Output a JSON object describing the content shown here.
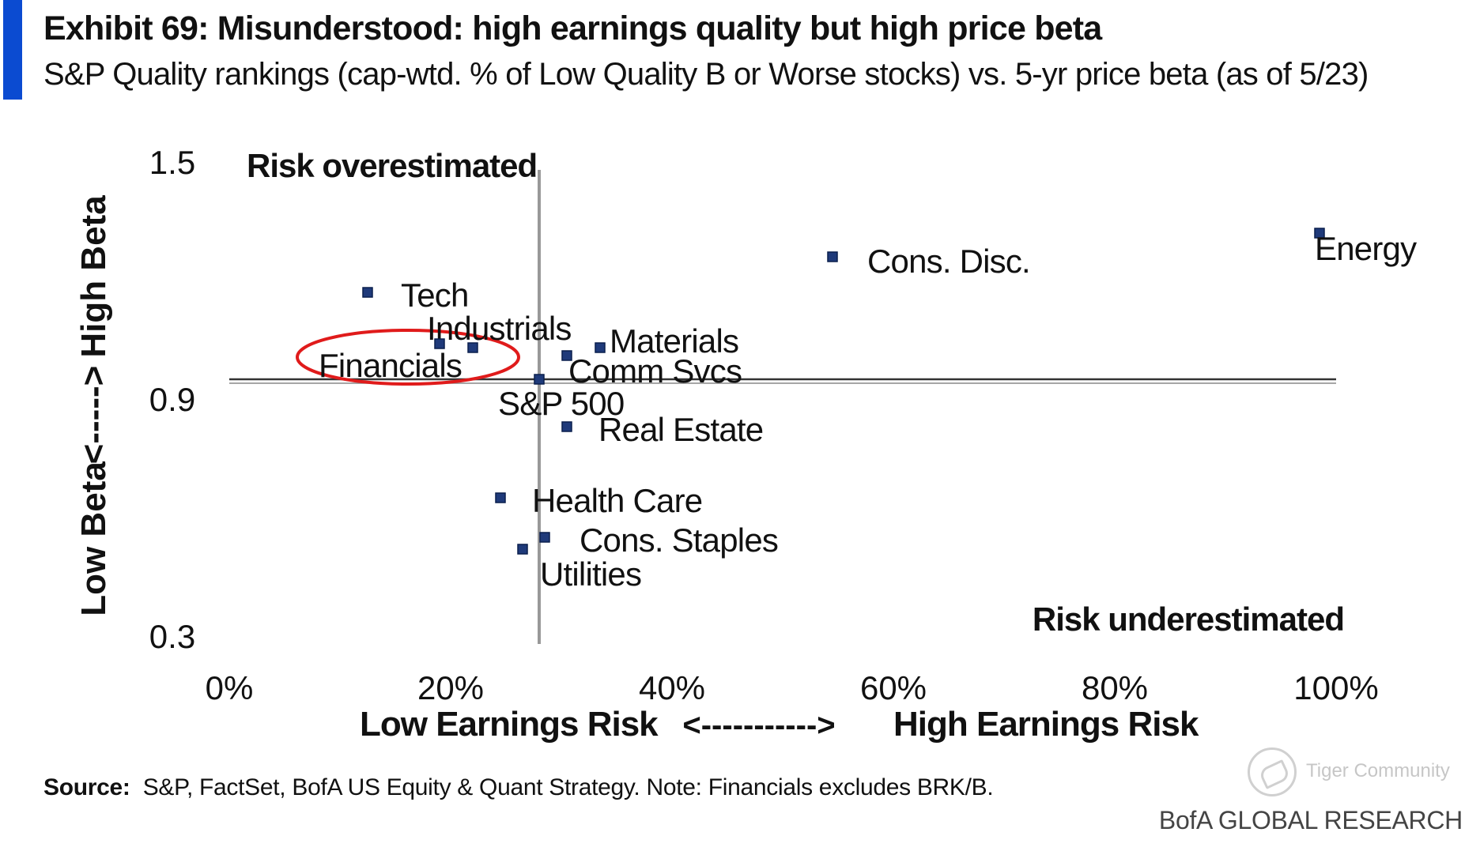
{
  "header": {
    "title": "Exhibit 69: Misunderstood: high earnings quality but high price beta",
    "subtitle": "S&P Quality rankings (cap-wtd. % of Low Quality B or Worse stocks) vs. 5-yr price beta (as of 5/23)",
    "accent_color": "#0b4bd1"
  },
  "chart_data": {
    "type": "scatter",
    "x": {
      "range": [
        0,
        100
      ],
      "ticks": [
        "0%",
        "20%",
        "40%",
        "60%",
        "80%",
        "100%"
      ],
      "tick_values": [
        0,
        20,
        40,
        60,
        80,
        100
      ]
    },
    "y": {
      "range": [
        0.3,
        1.5
      ],
      "ticks": [
        "1.5",
        "0.9",
        "0.3"
      ],
      "tick_values": [
        1.5,
        0.9,
        0.3
      ]
    },
    "xlabel": {
      "left": "Low Earnings Risk",
      "arrow": "<----------->",
      "right": "High  Earnings Risk"
    },
    "ylabel": {
      "bottom": "Low Beta",
      "arrow": "<----->",
      "top": "High Beta"
    },
    "quadrant_labels": {
      "top_left": "Risk overestimated",
      "bottom_right": "Risk underestimated"
    },
    "crosshair": {
      "x": 28,
      "y": 0.96
    },
    "marker_color": "#1f3a7a",
    "points": [
      {
        "label": "Energy",
        "x": 98.5,
        "y": 1.33
      },
      {
        "label": "Cons. Disc.",
        "x": 54.5,
        "y": 1.27
      },
      {
        "label": "Tech",
        "x": 12.5,
        "y": 1.18
      },
      {
        "label": "Industrials",
        "x": 22,
        "y": 1.04
      },
      {
        "label": "Financials",
        "x": 19,
        "y": 1.05
      },
      {
        "label": "Materials",
        "x": 33.5,
        "y": 1.04
      },
      {
        "label": "Comm Svcs",
        "x": 30.5,
        "y": 1.02
      },
      {
        "label": "S&P 500",
        "x": 28,
        "y": 0.96
      },
      {
        "label": "Real Estate",
        "x": 30.5,
        "y": 0.84
      },
      {
        "label": "Health Care",
        "x": 24.5,
        "y": 0.66
      },
      {
        "label": "Cons. Staples",
        "x": 28.5,
        "y": 0.56
      },
      {
        "label": "Utilities",
        "x": 26.5,
        "y": 0.53
      }
    ],
    "highlight": {
      "label": "Financials",
      "color": "#e01b1b"
    }
  },
  "footer": {
    "source_label": "Source:",
    "source_text": "S&P, FactSet, BofA US Equity & Quant Strategy. Note: Financials excludes BRK/B.",
    "brand": "BofA GLOBAL RESEARCH",
    "watermark": "Tiger Community"
  }
}
